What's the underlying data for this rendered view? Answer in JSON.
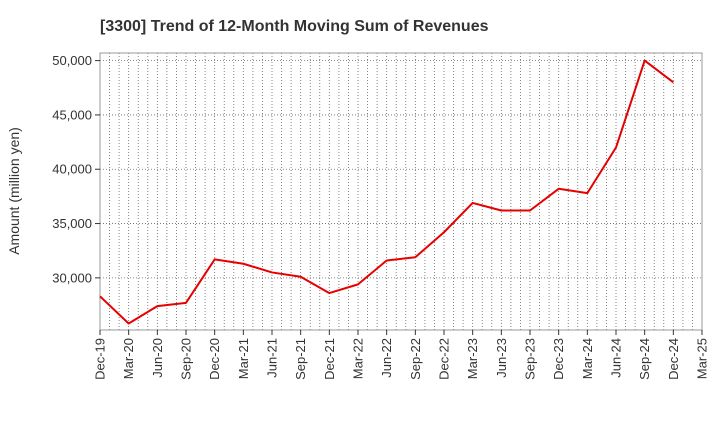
{
  "chart_data": {
    "type": "line",
    "title": "[3300]  Trend of 12-Month Moving Sum of Revenues",
    "ylabel": "Amount (million yen)",
    "xlabel": "",
    "x_ticks": [
      "Dec-19",
      "Mar-20",
      "Jun-20",
      "Sep-20",
      "Dec-20",
      "Mar-21",
      "Jun-21",
      "Sep-21",
      "Dec-21",
      "Mar-22",
      "Jun-22",
      "Sep-22",
      "Dec-22",
      "Mar-23",
      "Jun-23",
      "Sep-23",
      "Dec-23",
      "Mar-24",
      "Jun-24",
      "Sep-24",
      "Dec-24",
      "Mar-25"
    ],
    "y_ticks": [
      30000,
      35000,
      40000,
      45000,
      50000
    ],
    "y_tick_labels": [
      "30,000",
      "35,000",
      "40,000",
      "45,000",
      "50,000"
    ],
    "ylim": [
      25200,
      50700
    ],
    "grid": true,
    "series": [
      {
        "color": "#e60000",
        "x": [
          "Dec-19",
          "Mar-20",
          "Jun-20",
          "Sep-20",
          "Dec-20",
          "Mar-21",
          "Jun-21",
          "Sep-21",
          "Dec-21",
          "Mar-22",
          "Jun-22",
          "Sep-22",
          "Dec-22",
          "Mar-23",
          "Jun-23",
          "Sep-23",
          "Dec-23",
          "Mar-24",
          "Jun-24",
          "Sep-24",
          "Dec-24"
        ],
        "values": [
          28300,
          25800,
          27400,
          27700,
          31700,
          31300,
          30500,
          30100,
          28600,
          29400,
          31600,
          31900,
          34200,
          36900,
          36200,
          36200,
          38200,
          37800,
          42000,
          50000,
          48000
        ]
      }
    ]
  }
}
